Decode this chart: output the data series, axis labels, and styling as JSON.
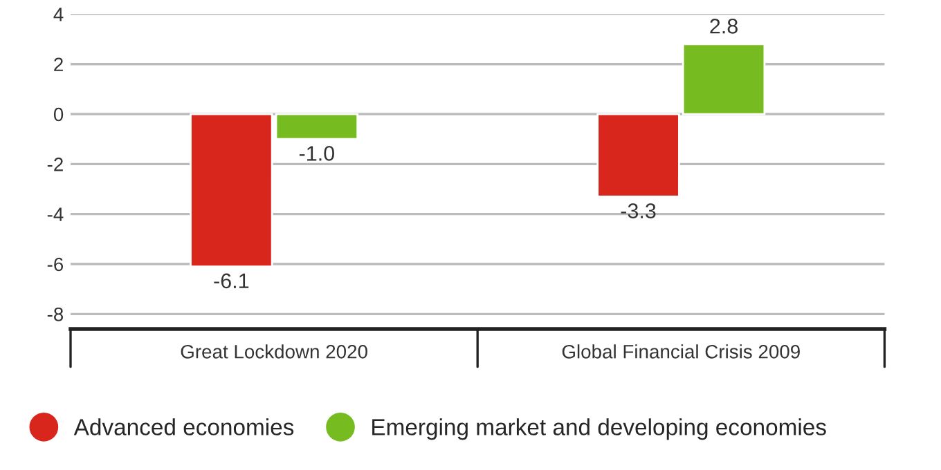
{
  "chart_data": {
    "type": "bar",
    "categories": [
      "Great Lockdown 2020",
      "Global Financial Crisis 2009"
    ],
    "series": [
      {
        "name": "Advanced economies",
        "color": "#d9261c",
        "values": [
          -6.1,
          -3.3
        ],
        "value_labels": [
          "-6.1",
          "-3.3"
        ]
      },
      {
        "name": "Emerging market and developing economies",
        "color": "#76bc21",
        "values": [
          -1.0,
          2.8
        ],
        "value_labels": [
          "-1.0",
          "2.8"
        ]
      }
    ],
    "ylim": [
      -8.6,
      4
    ],
    "yticks": [
      -8,
      -6,
      -4,
      -2,
      0,
      2,
      4
    ],
    "grid": "y",
    "legend": "bottom"
  }
}
